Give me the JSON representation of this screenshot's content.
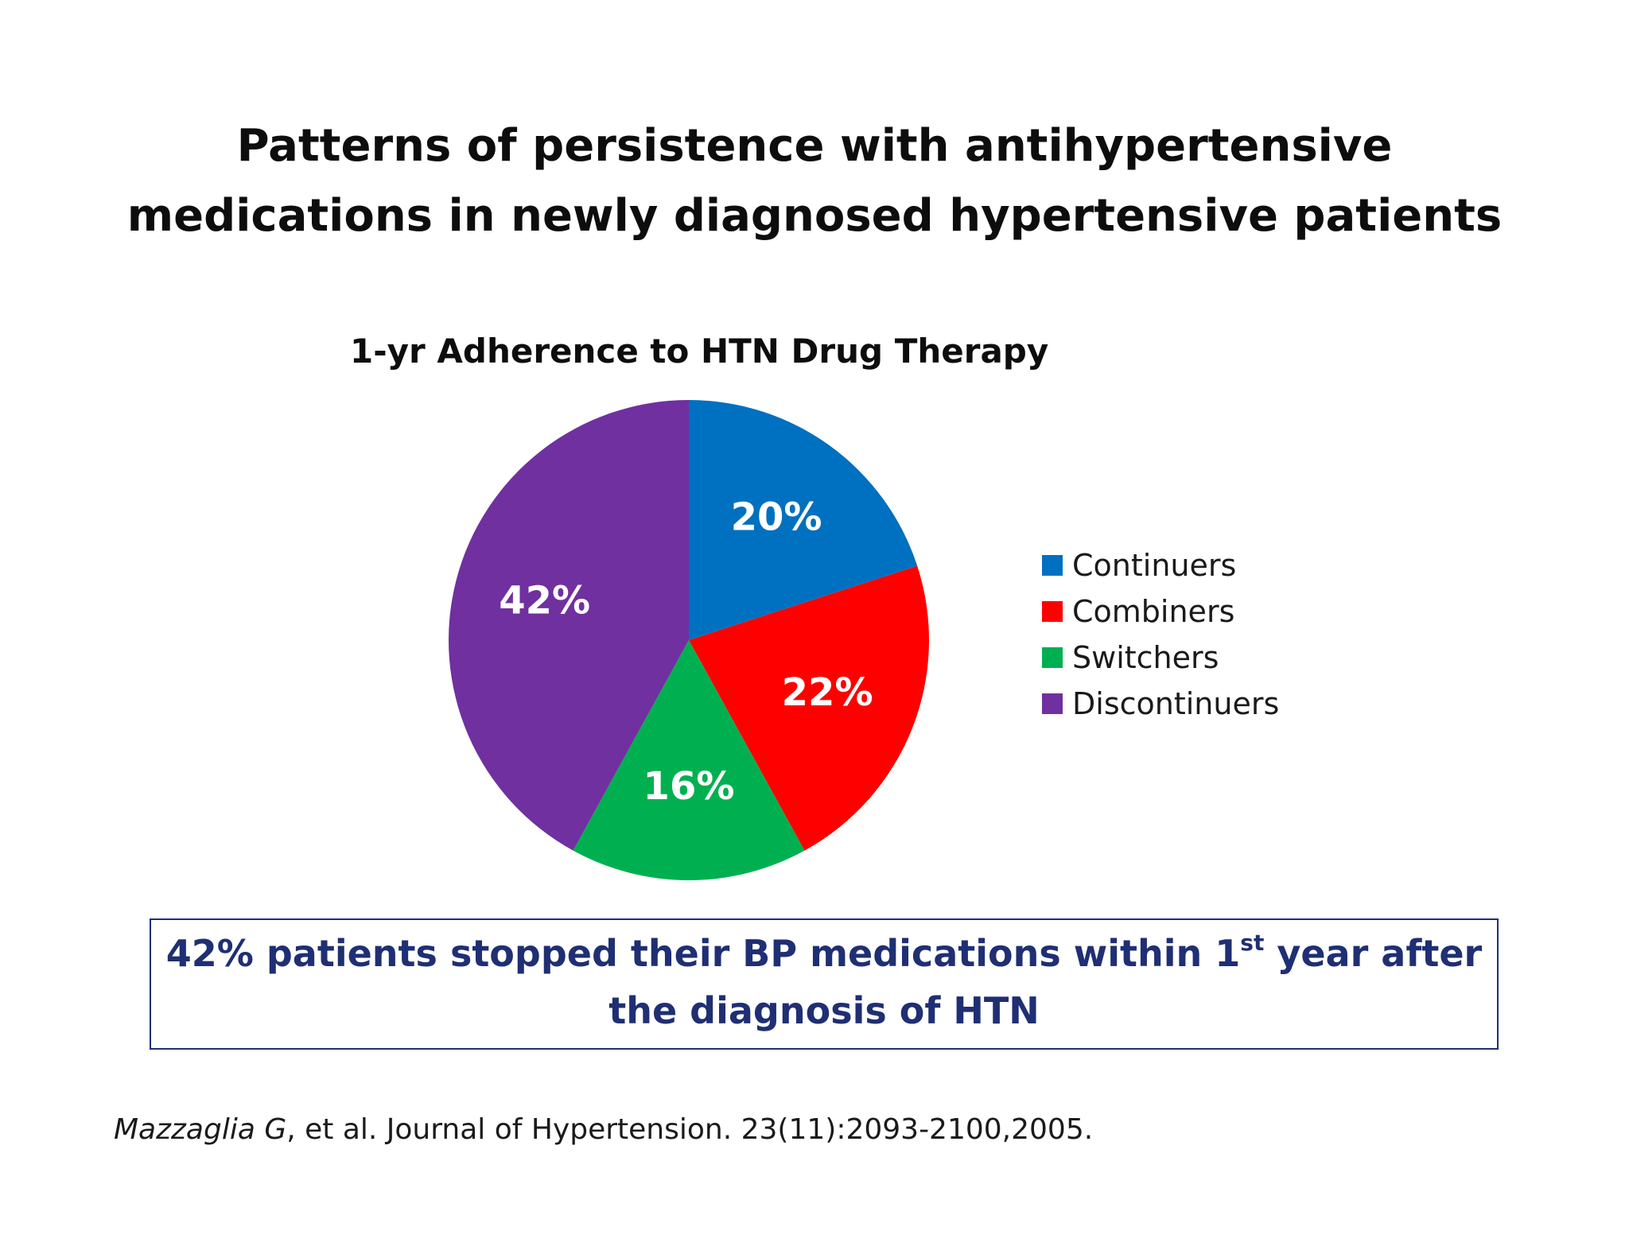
{
  "slide": {
    "title_line1": "Patterns of persistence with antihypertensive",
    "title_line2": "medications in newly diagnosed hypertensive patients",
    "callout_pre": "42% patients stopped their BP medications within 1",
    "callout_sup": "st",
    "callout_post": " year after",
    "callout_line2": "the diagnosis of HTN",
    "citation_authors": "Mazzaglia G",
    "citation_rest": ", et al. Journal of Hypertension. 23(11):2093-2100,2005."
  },
  "chart_data": {
    "type": "pie",
    "title": "1-yr Adherence to HTN Drug Therapy",
    "legend_position": "right",
    "slices": [
      {
        "name": "Continuers",
        "value": 20,
        "label": "20%",
        "color": "#0070c0"
      },
      {
        "name": "Combiners",
        "value": 22,
        "label": "22%",
        "color": "#ff0000"
      },
      {
        "name": "Switchers",
        "value": 16,
        "label": "16%",
        "color": "#00b050"
      },
      {
        "name": "Discontinuers",
        "value": 42,
        "label": "42%",
        "color": "#7030a0"
      }
    ]
  }
}
